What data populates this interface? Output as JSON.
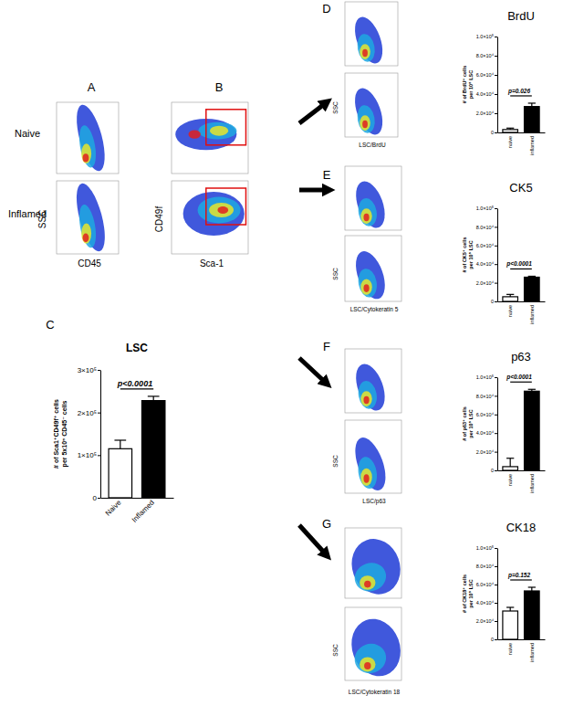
{
  "chart_data": [
    {
      "type": "bar",
      "panel": "C",
      "title": "LSC",
      "categories": [
        "Naive",
        "Inflamed"
      ],
      "values": [
        115000,
        228000
      ],
      "errors": [
        20000,
        10000
      ],
      "colors": [
        "#ffffff",
        "#000000"
      ],
      "ylabel": [
        "# of Sca1⁺CD49f⁺ cells",
        "per 5x10⁵ CD45⁻ cells"
      ],
      "ylim": [
        0,
        300000
      ],
      "yticks": [
        0,
        {
          "value": 100000,
          "label": "1×10⁵"
        },
        {
          "value": 200000,
          "label": "2×10⁵"
        },
        {
          "value": 300000,
          "label": "3×10⁵"
        }
      ],
      "annotation": "p<0.0001"
    },
    {
      "type": "bar",
      "panel": "D",
      "title": "BrdU",
      "categories": [
        "naive",
        "inflamed"
      ],
      "values": [
        3000,
        27000
      ],
      "errors": [
        1500,
        3500
      ],
      "colors": [
        "#ffffff",
        "#000000"
      ],
      "ylabel": [
        "# of BrdU⁺ cells",
        "per 10⁵ LSC"
      ],
      "ylim": [
        0,
        100000
      ],
      "yticks": [
        0,
        {
          "value": 20000,
          "label": "2.0×10⁴"
        },
        {
          "value": 40000,
          "label": "4.0×10⁴"
        },
        {
          "value": 60000,
          "label": "6.0×10⁴"
        },
        {
          "value": 80000,
          "label": "8.0×10⁴"
        },
        {
          "value": 100000,
          "label": "1.0×10⁵"
        }
      ],
      "annotation": "p=0.026"
    },
    {
      "type": "bar",
      "panel": "E",
      "title": "CK5",
      "categories": [
        "naive",
        "inflamed"
      ],
      "values": [
        5000,
        26000
      ],
      "errors": [
        2500,
        1000
      ],
      "colors": [
        "#ffffff",
        "#000000"
      ],
      "ylabel": [
        "# of CK5⁺ cells",
        "per 10⁵ LSC"
      ],
      "ylim": [
        0,
        100000
      ],
      "yticks": [
        0,
        {
          "value": 20000,
          "label": "2.0×10⁴"
        },
        {
          "value": 40000,
          "label": "4.0×10⁴"
        },
        {
          "value": 60000,
          "label": "6.0×10⁴"
        },
        {
          "value": 80000,
          "label": "8.0×10⁴"
        },
        {
          "value": 100000,
          "label": "1.0×10⁵"
        }
      ],
      "annotation": "p<0.0001"
    },
    {
      "type": "bar",
      "panel": "F",
      "title": "p63",
      "categories": [
        "naive",
        "inflamed"
      ],
      "values": [
        4000,
        85000
      ],
      "errors": [
        9000,
        2000
      ],
      "colors": [
        "#ffffff",
        "#000000"
      ],
      "ylabel": [
        "# of p63⁺ cells",
        "per 10⁵ LSC"
      ],
      "ylim": [
        0,
        100000
      ],
      "yticks": [
        0,
        {
          "value": 20000,
          "label": "2.0×10⁴"
        },
        {
          "value": 40000,
          "label": "4.0×10⁴"
        },
        {
          "value": 60000,
          "label": "6.0×10⁴"
        },
        {
          "value": 80000,
          "label": "8.0×10⁴"
        },
        {
          "value": 100000,
          "label": "1.0×10⁵"
        }
      ],
      "annotation": "p<0.0001"
    },
    {
      "type": "bar",
      "panel": "G",
      "title": "CK18",
      "categories": [
        "naive",
        "inflamed"
      ],
      "values": [
        31000,
        53000
      ],
      "errors": [
        4000,
        4000
      ],
      "colors": [
        "#ffffff",
        "#000000"
      ],
      "ylabel": [
        "# of CK18⁺ cells",
        "per 10⁵ LSC"
      ],
      "ylim": [
        0,
        100000
      ],
      "yticks": [
        0,
        {
          "value": 20000,
          "label": "2.0×10⁴"
        },
        {
          "value": 40000,
          "label": "4.0×10⁴"
        },
        {
          "value": 60000,
          "label": "6.0×10⁴"
        },
        {
          "value": 80000,
          "label": "8.0×10⁴"
        },
        {
          "value": 100000,
          "label": "1.0×10⁵"
        }
      ],
      "annotation": "p=0.152"
    }
  ],
  "row_labels": [
    "Naive",
    "Inflamed"
  ],
  "flow_panels": [
    {
      "panel": "A",
      "x_label": "CD45",
      "y_label": "SSC"
    },
    {
      "panel": "B",
      "x_label": "Sca-1",
      "y_label": "CD49f"
    },
    {
      "panel": "D",
      "x_label": "LSC/BrdU",
      "y_label": "SSC"
    },
    {
      "panel": "E",
      "x_label": "LSC/Cytokeratin 5",
      "y_label": "SSC"
    },
    {
      "panel": "F",
      "x_label": "LSC/p63",
      "y_label": "SSC"
    },
    {
      "panel": "G",
      "x_label": "LSC/Cytokeratin 18",
      "y_label": "SSC"
    }
  ]
}
